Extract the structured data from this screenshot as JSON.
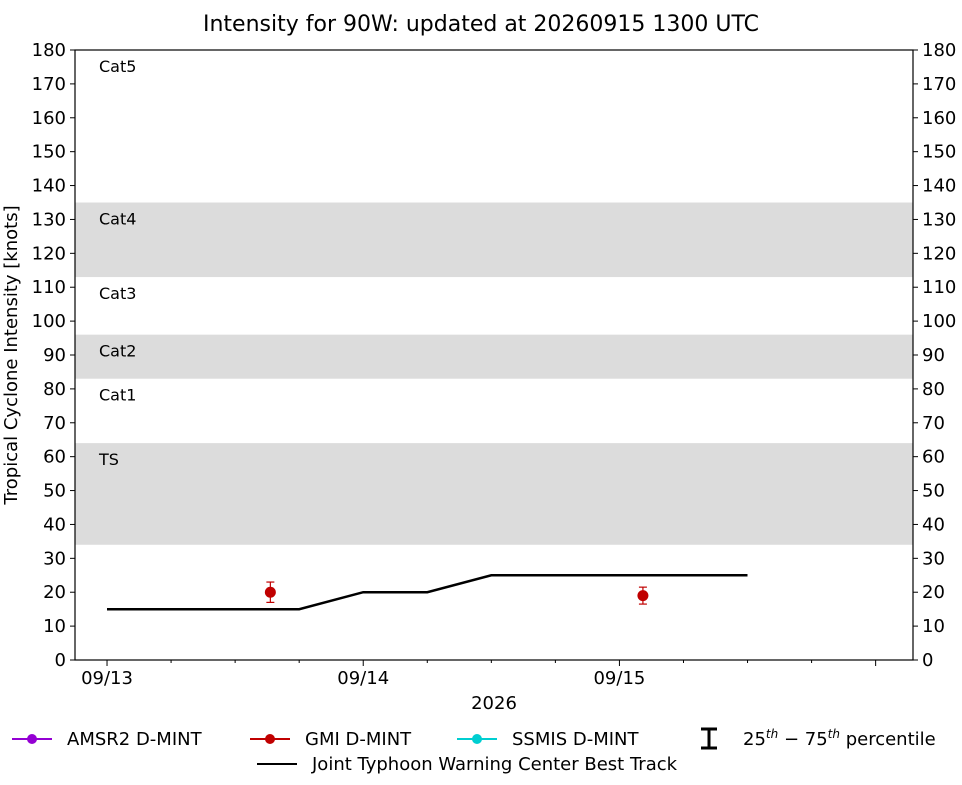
{
  "chart_data": {
    "type": "line",
    "title": "Intensity for 90W: updated at 20260915 1300 UTC",
    "xlabel": "2026",
    "ylabel": "Tropical Cyclone Intensity [knots]",
    "x_tick_labels": [
      "09/13",
      "09/14",
      "09/15"
    ],
    "xlim_hours": [
      -3,
      75.5
    ],
    "ylim": [
      0,
      180
    ],
    "y_ticks": [
      0,
      10,
      20,
      30,
      40,
      50,
      60,
      70,
      80,
      90,
      100,
      110,
      120,
      130,
      140,
      150,
      160,
      170,
      180
    ],
    "grid": false,
    "category_bands": [
      {
        "label": "TS",
        "lo": 34,
        "hi": 64,
        "shaded": true
      },
      {
        "label": "Cat1",
        "lo": 64,
        "hi": 83,
        "shaded": false
      },
      {
        "label": "Cat2",
        "lo": 83,
        "hi": 96,
        "shaded": true
      },
      {
        "label": "Cat3",
        "lo": 96,
        "hi": 113,
        "shaded": false
      },
      {
        "label": "Cat4",
        "lo": 113,
        "hi": 135,
        "shaded": true
      },
      {
        "label": "Cat5",
        "lo": 135,
        "hi": 180,
        "shaded": false
      }
    ],
    "series": [
      {
        "name": "Joint Typhoon Warning Center Best Track",
        "color": "#000000",
        "kind": "line",
        "points": [
          {
            "t": "09/13 00Z",
            "h": 0,
            "y": 15
          },
          {
            "t": "09/13 06Z",
            "h": 6,
            "y": 15
          },
          {
            "t": "09/13 12Z",
            "h": 12,
            "y": 15
          },
          {
            "t": "09/13 18Z",
            "h": 18,
            "y": 15
          },
          {
            "t": "09/14 00Z",
            "h": 24,
            "y": 20
          },
          {
            "t": "09/14 06Z",
            "h": 30,
            "y": 20
          },
          {
            "t": "09/14 12Z",
            "h": 36,
            "y": 25
          },
          {
            "t": "09/14 18Z",
            "h": 42,
            "y": 25
          },
          {
            "t": "09/15 00Z",
            "h": 48,
            "y": 25
          },
          {
            "t": "09/15 06Z",
            "h": 54,
            "y": 25
          },
          {
            "t": "09/15 12Z",
            "h": 60,
            "y": 25
          }
        ]
      },
      {
        "name": "GMI D-MINT",
        "color": "#c00000",
        "kind": "point",
        "points": [
          {
            "t": "09/13 ~15Z",
            "h": 15.3,
            "y": 20,
            "p25": 17,
            "p75": 23
          },
          {
            "t": "09/15 ~02Z",
            "h": 50.2,
            "y": 19,
            "p25": 16.5,
            "p75": 21.5
          }
        ]
      },
      {
        "name": "AMSR2 D-MINT",
        "color": "#9400d3",
        "kind": "point",
        "points": []
      },
      {
        "name": "SSMIS D-MINT",
        "color": "#00ced1",
        "kind": "point",
        "points": []
      }
    ],
    "legend": {
      "placement": "bottom",
      "items": [
        {
          "label": "AMSR2 D-MINT",
          "color": "#9400d3",
          "marker": "dot-line"
        },
        {
          "label": "GMI D-MINT",
          "color": "#c00000",
          "marker": "dot-line"
        },
        {
          "label": "SSMIS D-MINT",
          "color": "#00ced1",
          "marker": "dot-line"
        },
        {
          "label": "percentile",
          "marker": "errorbar"
        },
        {
          "label": "Joint Typhoon Warning Center Best Track",
          "color": "#000000",
          "marker": "line"
        }
      ],
      "percentile_text": {
        "p1": "25",
        "sup1": "th",
        "dash": " − ",
        "p2": "75",
        "sup2": "th",
        "word": " percentile"
      }
    },
    "colors": {
      "band_shade": "#dcdcdc",
      "axis": "#000000"
    }
  }
}
